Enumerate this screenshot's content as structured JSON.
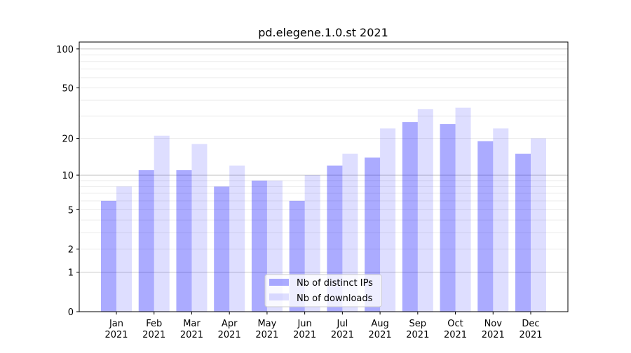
{
  "chart_data": {
    "type": "bar",
    "title": "pd.elegene.1.0.st 2021",
    "xlabel": "",
    "ylabel": "",
    "yscale": "log(1+y)",
    "ylim": [
      0,
      113
    ],
    "yticks": [
      0,
      1,
      2,
      5,
      10,
      20,
      50,
      100
    ],
    "grid": true,
    "legend": "lower-center",
    "categories": [
      "Jan\n2021",
      "Feb\n2021",
      "Mar\n2021",
      "Apr\n2021",
      "May\n2021",
      "Jun\n2021",
      "Jul\n2021",
      "Aug\n2021",
      "Sep\n2021",
      "Oct\n2021",
      "Nov\n2021",
      "Dec\n2021"
    ],
    "series": [
      {
        "name": "Nb of distinct IPs",
        "color": "#aaaaff",
        "values": [
          6,
          11,
          11,
          8,
          9,
          6,
          12,
          14,
          27,
          26,
          19,
          15
        ]
      },
      {
        "name": "Nb of downloads",
        "color": "#ddddff",
        "values": [
          8,
          21,
          18,
          12,
          9,
          10,
          15,
          24,
          34,
          35,
          24,
          20
        ]
      }
    ]
  }
}
